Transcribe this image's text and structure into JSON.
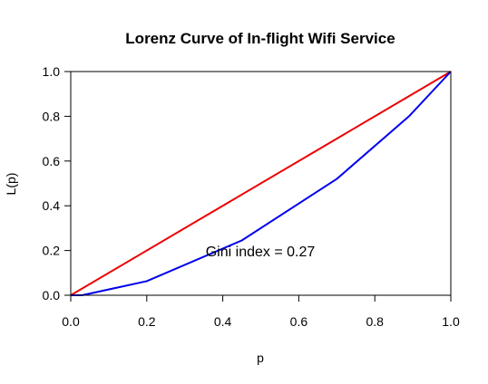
{
  "chart_data": {
    "type": "line",
    "title": "Lorenz Curve of In-flight Wifi Service",
    "xlabel": "p",
    "ylabel": "L(p)",
    "xlim": [
      0,
      1
    ],
    "ylim": [
      0,
      1
    ],
    "x_ticks": [
      "0.0",
      "0.2",
      "0.4",
      "0.6",
      "0.8",
      "1.0"
    ],
    "y_ticks": [
      "0.0",
      "0.2",
      "0.4",
      "0.6",
      "0.8",
      "1.0"
    ],
    "grid": false,
    "annotation": "Gini index = 0.27",
    "series": [
      {
        "color": "#ee0000",
        "x": [
          0,
          1
        ],
        "y": [
          0,
          1
        ]
      },
      {
        "color": "#0000ee",
        "x": [
          0,
          0.03,
          0.2,
          0.45,
          0.7,
          0.89,
          1.0
        ],
        "y": [
          0,
          0,
          0.063,
          0.245,
          0.52,
          0.8,
          1.0
        ]
      }
    ]
  }
}
